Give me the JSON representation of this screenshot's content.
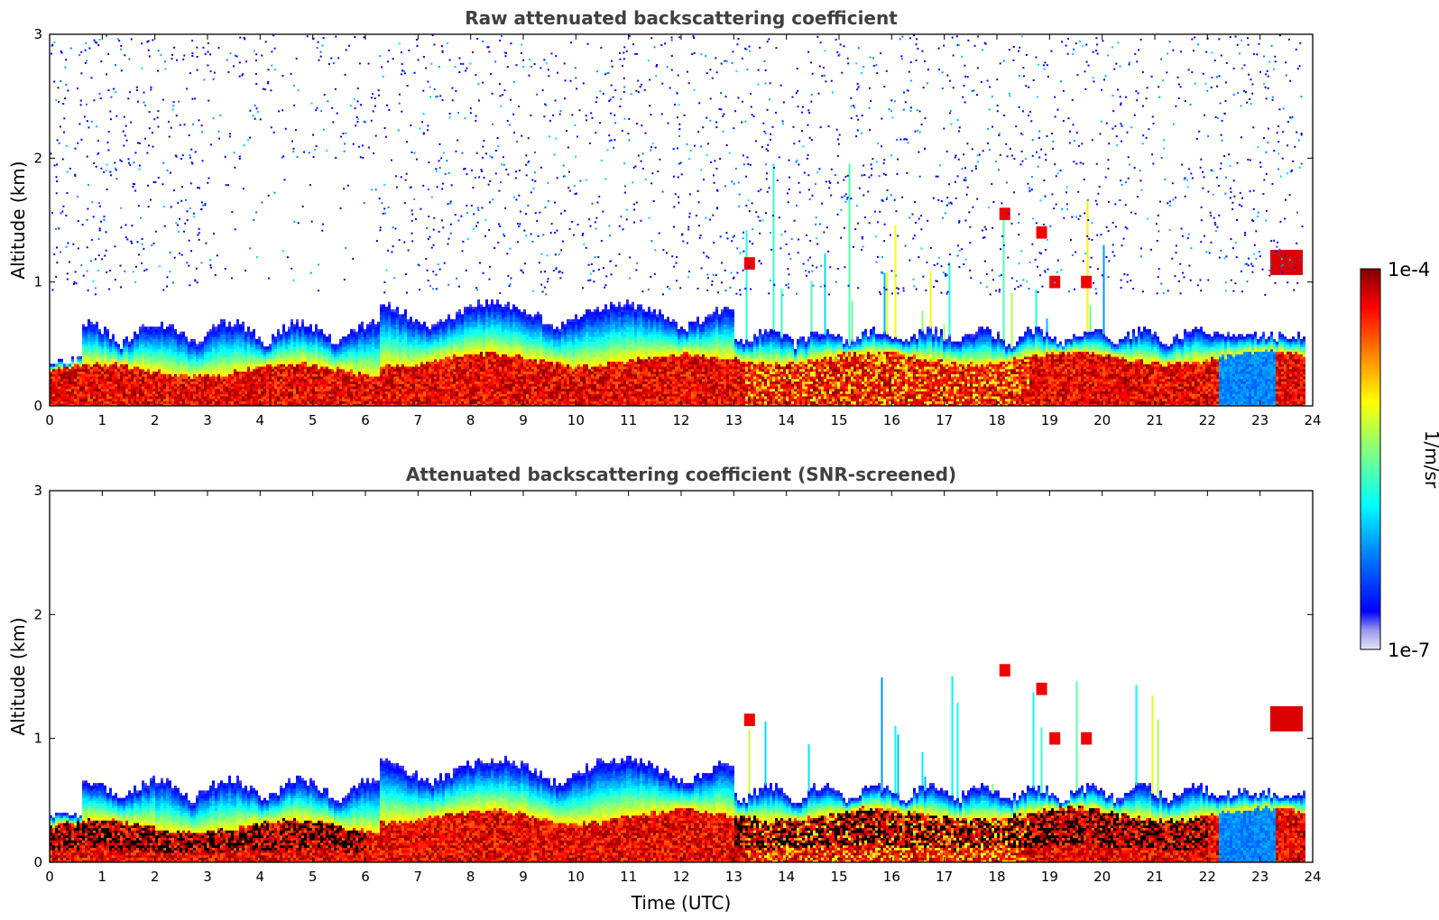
{
  "chart_data": [
    {
      "type": "heatmap",
      "title": "Raw attenuated backscattering coefficient",
      "xlabel": "",
      "ylabel": "Altitude (km)",
      "xlim": [
        0,
        24
      ],
      "ylim": [
        0,
        3
      ],
      "xticks": [
        "0",
        "1",
        "2",
        "3",
        "4",
        "5",
        "6",
        "7",
        "8",
        "9",
        "10",
        "11",
        "12",
        "13",
        "14",
        "15",
        "16",
        "17",
        "18",
        "19",
        "20",
        "21",
        "22",
        "23",
        "24"
      ],
      "yticks": [
        "0",
        "1",
        "2",
        "3"
      ],
      "screened": false,
      "features": [
        {
          "name": "boundary-layer aerosol",
          "x_range": [
            0,
            13
          ],
          "y_range": [
            0,
            0.4
          ],
          "level": "1e-5 to 1e-4"
        },
        {
          "name": "aerosol layer top",
          "x_range": [
            0.6,
            13
          ],
          "y_range": [
            0.4,
            1.0
          ],
          "level": "1e-6 to 1e-5"
        },
        {
          "name": "cloud / convection",
          "x_range": [
            13,
            22
          ],
          "y_range": [
            0,
            2.0
          ],
          "level": "up to 1e-4"
        },
        {
          "name": "cloud layer",
          "x_range": [
            23.2,
            23.8
          ],
          "y_range": [
            1.0,
            1.25
          ],
          "level": "1e-4"
        },
        {
          "name": "noise",
          "x_range": [
            0,
            24
          ],
          "y_range": [
            1.0,
            3.0
          ],
          "level": "1e-7 to 1e-6"
        }
      ]
    },
    {
      "type": "heatmap",
      "title": "Attenuated backscattering coefficient (SNR-screened)",
      "xlabel": "Time (UTC)",
      "ylabel": "Altitude (km)",
      "xlim": [
        0,
        24
      ],
      "ylim": [
        0,
        3
      ],
      "xticks": [
        "0",
        "1",
        "2",
        "3",
        "4",
        "5",
        "6",
        "7",
        "8",
        "9",
        "10",
        "11",
        "12",
        "13",
        "14",
        "15",
        "16",
        "17",
        "18",
        "19",
        "20",
        "21",
        "22",
        "23",
        "24"
      ],
      "yticks": [
        "0",
        "1",
        "2",
        "3"
      ],
      "screened": true,
      "features": [
        {
          "name": "boundary-layer aerosol",
          "x_range": [
            0,
            13
          ],
          "y_range": [
            0,
            0.35
          ],
          "level": "1e-5 to 1e-4"
        },
        {
          "name": "aerosol layer top",
          "x_range": [
            0.6,
            13
          ],
          "y_range": [
            0.35,
            1.0
          ],
          "level": "1e-6 to 1e-5"
        },
        {
          "name": "cloud / convection",
          "x_range": [
            13,
            22
          ],
          "y_range": [
            0,
            1.7
          ],
          "level": "up to 1e-4"
        },
        {
          "name": "cloud layer",
          "x_range": [
            23.2,
            23.8
          ],
          "y_range": [
            1.0,
            1.25
          ],
          "level": "1e-4"
        }
      ]
    }
  ],
  "colorbar": {
    "label": "1/m/sr",
    "max_label": "1e-4",
    "min_label": "1e-7",
    "scale": "log",
    "range": [
      1e-07,
      0.0001
    ],
    "colormap": [
      "#e6e6fa",
      "#9999ee",
      "#0000ff",
      "#0080ff",
      "#00ffff",
      "#80ff80",
      "#ffff00",
      "#ff8000",
      "#ff0000",
      "#800000"
    ]
  }
}
